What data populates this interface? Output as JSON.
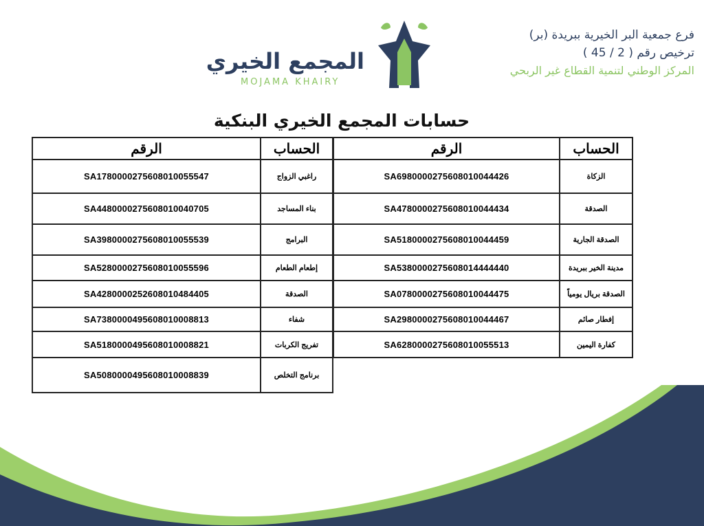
{
  "header": {
    "line1": "فرع جمعية البر الخيرية ببريدة (بر)",
    "line2": "ترخيص رقم ( 2 / 45 )",
    "line3": "المركز الوطني لتنمية القطاع غير الربحي"
  },
  "logo": {
    "name_ar": "المجمع الخيري",
    "name_en": "MOJAMA KHAIRY"
  },
  "title": "حسابات المجمع الخيري البنكية",
  "columns": {
    "account": "الحساب",
    "number": "الرقم"
  },
  "right_table": [
    {
      "account": "الزكاة",
      "number": "SA6980000275608010044426"
    },
    {
      "account": "الصدقة",
      "number": "SA4780000275608010044434"
    },
    {
      "account": "الصدقة الجارية",
      "number": "SA5180000275608010044459"
    },
    {
      "account": "مدينة الخير ببريدة",
      "number": "SA5380000275608014444440"
    },
    {
      "account": "الصدقة بريال يومياً",
      "number": "SA0780000275608010044475"
    },
    {
      "account": "إفطار صائم",
      "number": "SA2980000275608010044467"
    },
    {
      "account": "كفارة اليمين",
      "number": "SA6280000275608010055513"
    }
  ],
  "left_table": [
    {
      "account": "راغبي الزواج",
      "number": "SA1780000275608010055547"
    },
    {
      "account": "بناء المساجد",
      "number": "SA4480000275608010040705"
    },
    {
      "account": "البرامج",
      "number": "SA3980000275608010055539"
    },
    {
      "account": "إطعام الطعام",
      "number": "SA5280000275608010055596"
    },
    {
      "account": "الصدقة",
      "number": "SA4280000252608010484405"
    },
    {
      "account": "شفاء",
      "number": "SA7380000495608010008813"
    },
    {
      "account": "تفريج الكربات",
      "number": "SA5180000495608010008821"
    },
    {
      "account": "برنامج التخلص",
      "number": "SA5080000495608010008839"
    }
  ],
  "colors": {
    "navy": "#2d3f5f",
    "green": "#9dcf6a"
  }
}
